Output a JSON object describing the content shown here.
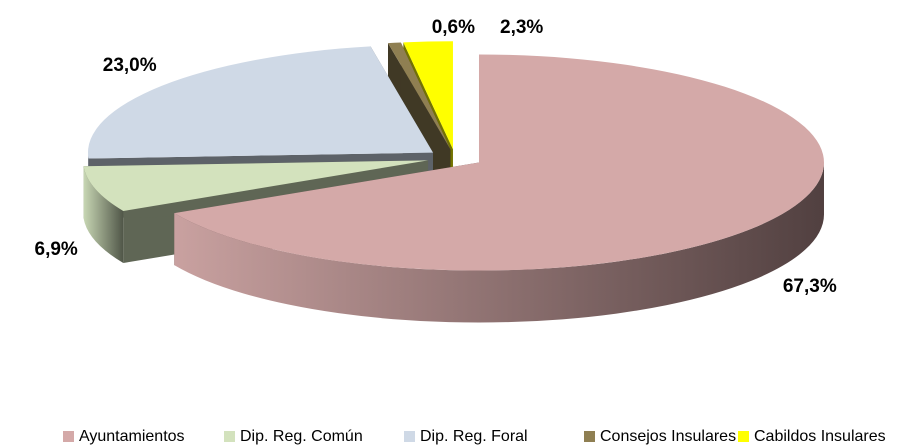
{
  "chart_data": {
    "type": "pie",
    "categories": [
      "Ayuntamientos",
      "Dip. Reg. Común",
      "Dip. Reg. Foral",
      "Consejos Insulares",
      "Cabildos Insulares"
    ],
    "values": [
      67.3,
      6.9,
      23.0,
      0.6,
      2.3
    ],
    "value_labels": [
      "67,3%",
      "6,9%",
      "23,0%",
      "0,6%",
      "2,3%"
    ],
    "colors": [
      "#d4a9a8",
      "#d3e2bd",
      "#cfd9e6",
      "#8f7f52",
      "#ffff00"
    ],
    "legend": "bottom"
  }
}
